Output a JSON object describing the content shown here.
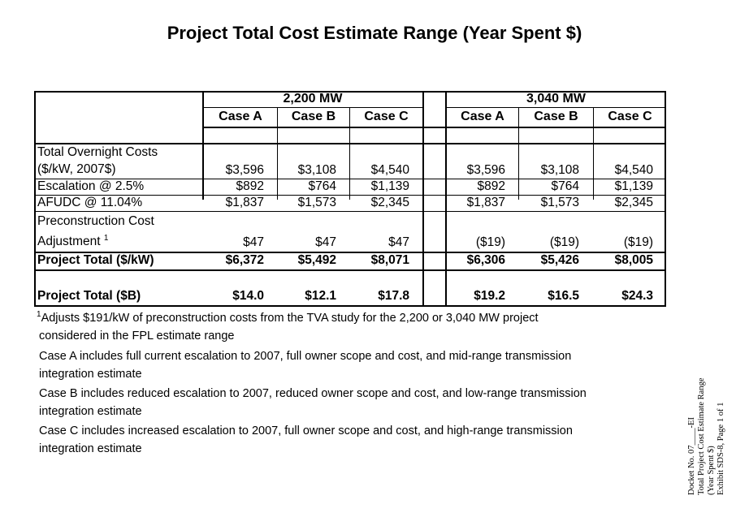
{
  "title": "Project Total Cost Estimate Range (Year Spent $)",
  "groups": [
    "2,200 MW",
    "3,040 MW"
  ],
  "cases": [
    "Case A",
    "Case B",
    "Case C",
    "Case A",
    "Case B",
    "Case C"
  ],
  "rows": {
    "overnight": {
      "label1": "Total Overnight Costs",
      "label2": "($/kW, 2007$)",
      "values": [
        "$3,596",
        "$3,108",
        "$4,540",
        "$3,596",
        "$3,108",
        "$4,540"
      ]
    },
    "escalation": {
      "label": "Escalation @  2.5%",
      "values": [
        "$892",
        "$764",
        "$1,139",
        "$892",
        "$764",
        "$1,139"
      ]
    },
    "afudc": {
      "label": "AFUDC @ 11.04%",
      "values": [
        "$1,837",
        "$1,573",
        "$2,345",
        "$1,837",
        "$1,573",
        "$2,345"
      ]
    },
    "precon": {
      "label1": "Preconstruction Cost",
      "label2": "Adjustment",
      "sup": "1",
      "values": [
        "$47",
        "$47",
        "$47",
        "($19)",
        "($19)",
        "($19)"
      ]
    },
    "total_kw": {
      "label": "Project Total ($/kW)",
      "values": [
        "$6,372",
        "$5,492",
        "$8,071",
        "$6,306",
        "$5,426",
        "$8,005"
      ]
    },
    "total_b": {
      "label": "Project Total ($B)",
      "values": [
        "$14.0",
        "$12.1",
        "$17.8",
        "$19.2",
        "$16.5",
        "$24.3"
      ]
    }
  },
  "footnotes": {
    "note_sup": "1",
    "note_line1": "Adjusts $191/kW of preconstruction costs from the TVA study for the 2,200 or 3,040 MW project",
    "note_line2": "considered in the FPL estimate range",
    "case_a_line1": "Case A includes full current escalation to 2007, full owner scope and cost, and mid-range transmission",
    "case_a_line2": "integration estimate",
    "case_b_line1": "Case B includes reduced escalation to 2007, reduced owner scope and cost, and low-range transmission",
    "case_b_line2": "integration estimate",
    "case_c_line1": "Case C includes increased escalation to 2007, full owner scope and cost, and high-range transmission",
    "case_c_line2": "integration estimate"
  },
  "stamp": {
    "line1": "Docket No. 07____-EI",
    "line2": "Total Project Cost Estimate Range",
    "line3": "(Year Spent $)",
    "line4": "Exhibit SDS-8, Page 1 of 1"
  }
}
